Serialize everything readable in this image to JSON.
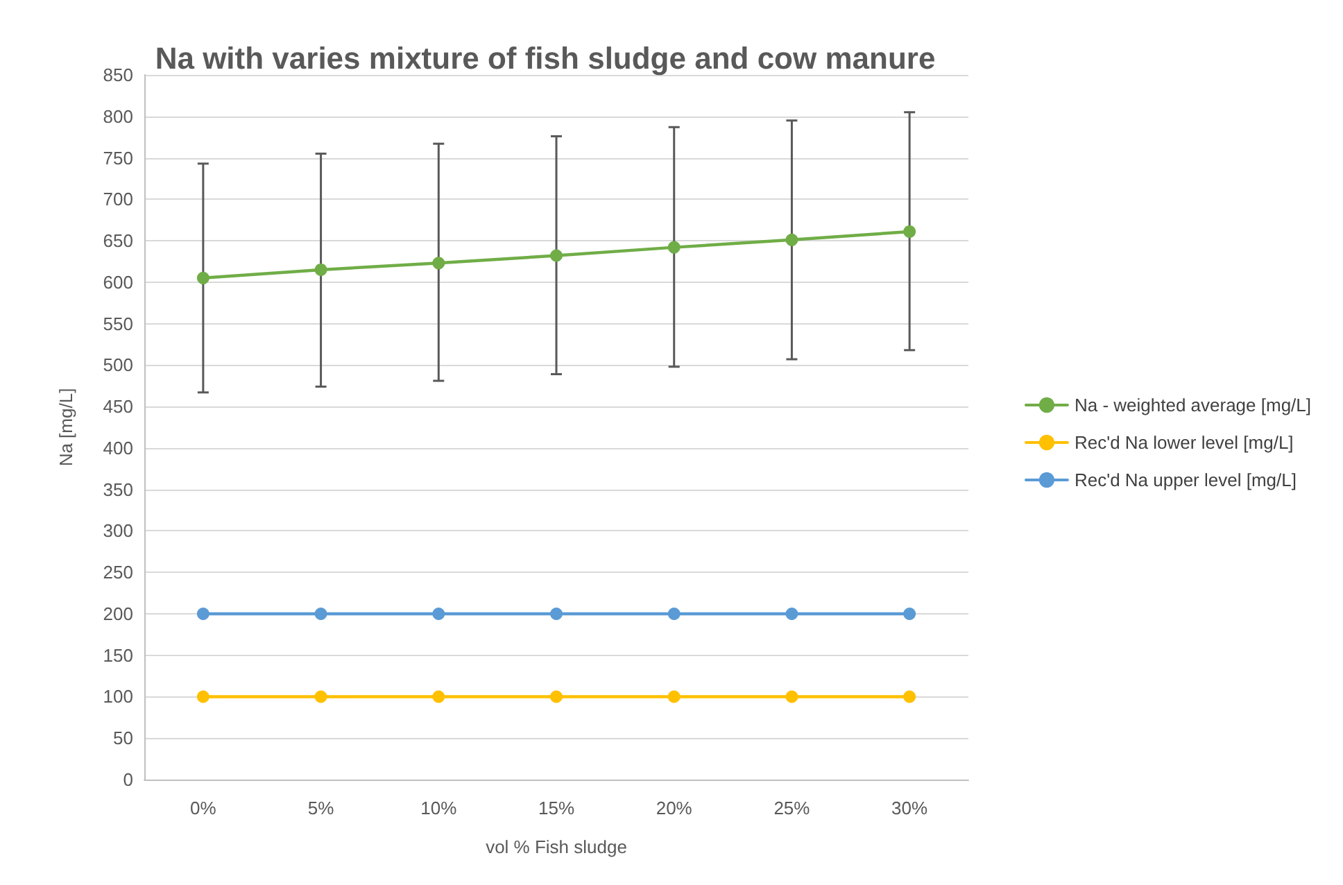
{
  "chart_data": {
    "type": "line",
    "title": "Na with varies mixture of fish sludge and cow manure",
    "xlabel": "vol % Fish sludge",
    "ylabel": "Na [mg/L]",
    "categories": [
      "0%",
      "5%",
      "10%",
      "15%",
      "20%",
      "25%",
      "30%"
    ],
    "series": [
      {
        "name": "Na - weighted average [mg/L]",
        "color": "#70ad47",
        "values": [
          605,
          615,
          623,
          632,
          642,
          651,
          661
        ],
        "errors": [
          [
            467,
            743
          ],
          [
            474,
            755
          ],
          [
            481,
            767
          ],
          [
            489,
            776
          ],
          [
            498,
            787
          ],
          [
            507,
            795
          ],
          [
            518,
            805
          ]
        ]
      },
      {
        "name": "Rec'd Na lower level [mg/L]",
        "color": "#ffc000",
        "values": [
          100,
          100,
          100,
          100,
          100,
          100,
          100
        ]
      },
      {
        "name": "Rec'd Na upper level [mg/L]",
        "color": "#5b9bd5",
        "values": [
          200,
          200,
          200,
          200,
          200,
          200,
          200
        ]
      }
    ],
    "ylim": [
      0,
      850
    ],
    "yticks": [
      0,
      50,
      100,
      150,
      200,
      250,
      300,
      350,
      400,
      450,
      500,
      550,
      600,
      650,
      700,
      750,
      800,
      850
    ],
    "grid": "y",
    "legend": "right",
    "marker": "circle",
    "line_style": "solid"
  }
}
